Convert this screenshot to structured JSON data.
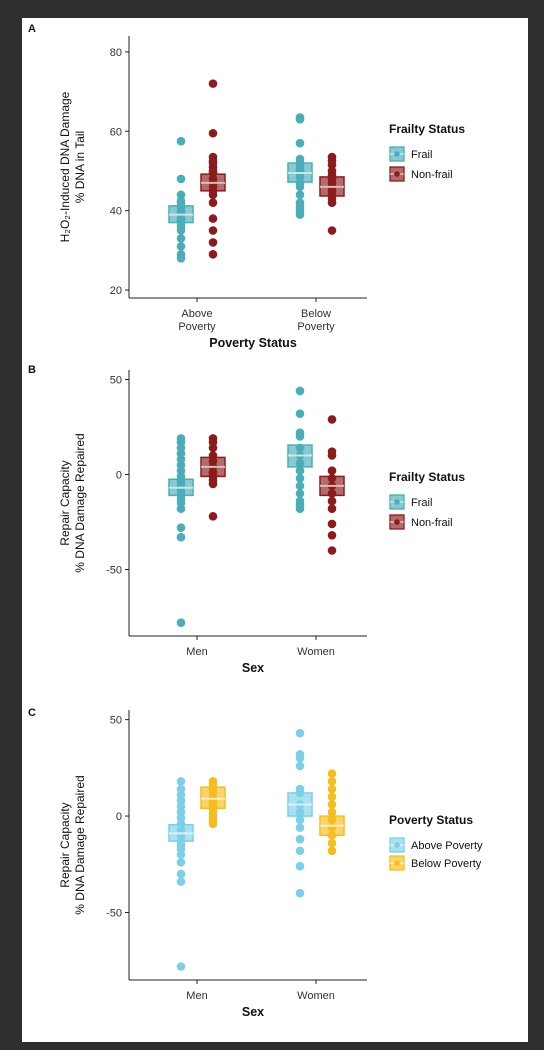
{
  "chart_data": [
    {
      "panel": "A",
      "type": "scatter",
      "xlabel": "Poverty Status",
      "ylabel_lines": [
        "H₂O₂-Induced DNA Damage",
        "% DNA in Tail"
      ],
      "categories": [
        "Above Poverty",
        "Below Poverty"
      ],
      "category_lines": [
        [
          "Above",
          "Poverty"
        ],
        [
          "Below",
          "Poverty"
        ]
      ],
      "ylim": [
        18,
        84
      ],
      "yticks": [
        20,
        40,
        60,
        80
      ],
      "legend_title": "Frailty Status",
      "legend_position": "right",
      "grid": false,
      "series": [
        {
          "name": "Frail",
          "color": "#4aadb8",
          "mean": [
            39,
            49.5
          ],
          "ci": [
            [
              37,
              41.2
            ],
            [
              47.2,
              52
            ]
          ],
          "points": [
            [
              57.5,
              48,
              44,
              42.5,
              42,
              41,
              40,
              39.5,
              39,
              38,
              37.5,
              37,
              36,
              35,
              33,
              31,
              29,
              28
            ],
            [
              63.5,
              63,
              57,
              53,
              52,
              51,
              50,
              49.5,
              48.5,
              47,
              46,
              44,
              42,
              41,
              40,
              39
            ]
          ]
        },
        {
          "name": "Non-frail",
          "color": "#8b1c1c",
          "mean": [
            47,
            46
          ],
          "ci": [
            [
              45,
              49.2
            ],
            [
              43.7,
              48.5
            ]
          ],
          "points": [
            [
              72,
              59.5,
              53.5,
              52.5,
              52,
              51,
              50,
              49.5,
              48,
              47,
              46,
              45,
              44,
              42,
              38,
              35,
              32,
              29
            ],
            [
              53.5,
              52.5,
              51.5,
              50,
              49,
              48,
              47,
              46,
              45,
              44,
              43,
              42,
              35
            ]
          ]
        }
      ]
    },
    {
      "panel": "B",
      "type": "scatter",
      "xlabel": "Sex",
      "ylabel_lines": [
        "Repair Capacity",
        "% DNA Damage Repaired"
      ],
      "categories": [
        "Men",
        "Women"
      ],
      "category_lines": [
        [
          "Men"
        ],
        [
          "Women"
        ]
      ],
      "ylim": [
        -85,
        55
      ],
      "yticks": [
        -50,
        0,
        50
      ],
      "legend_title": "Frailty Status",
      "legend_position": "right",
      "grid": false,
      "series": [
        {
          "name": "Frail",
          "color": "#4aadb8",
          "mean": [
            -7,
            10
          ],
          "ci": [
            [
              -11,
              -2.5
            ],
            [
              4,
              15.5
            ]
          ],
          "points": [
            [
              19,
              17,
              14,
              11,
              8,
              5,
              2,
              -1,
              -3,
              -5,
              -7,
              -9,
              -11,
              -13,
              -15,
              -18,
              -28,
              -33,
              -78
            ],
            [
              44,
              32,
              22,
              20,
              14,
              10,
              6,
              2,
              -2,
              -6,
              -10,
              -14,
              -16,
              -18
            ]
          ]
        },
        {
          "name": "Non-frail",
          "color": "#8b1c1c",
          "mean": [
            4,
            -6
          ],
          "ci": [
            [
              -1,
              9
            ],
            [
              -11,
              -1
            ]
          ],
          "points": [
            [
              19,
              17,
              14,
              10,
              7,
              4,
              1,
              -1,
              -3,
              -5,
              -22
            ],
            [
              29,
              12,
              10,
              2,
              -2,
              -6,
              -10,
              -14,
              -18,
              -26,
              -32,
              -40
            ]
          ]
        }
      ]
    },
    {
      "panel": "C",
      "type": "scatter",
      "xlabel": "Sex",
      "ylabel_lines": [
        "Repair Capacity",
        "% DNA Damage Repaired"
      ],
      "categories": [
        "Men",
        "Women"
      ],
      "category_lines": [
        [
          "Men"
        ],
        [
          "Women"
        ]
      ],
      "ylim": [
        -85,
        55
      ],
      "yticks": [
        -50,
        0,
        50
      ],
      "legend_title": "Poverty Status",
      "legend_position": "right",
      "grid": false,
      "series": [
        {
          "name": "Above Poverty",
          "color": "#7dcfe8",
          "mean": [
            -9,
            6
          ],
          "ci": [
            [
              -13,
              -4.5
            ],
            [
              0,
              12
            ]
          ],
          "points": [
            [
              18,
              14,
              11,
              8,
              5,
              2,
              -1,
              -4,
              -7,
              -10,
              -13,
              -15,
              -17,
              -20,
              -24,
              -30,
              -34,
              -78
            ],
            [
              43,
              32,
              30,
              26,
              14,
              12,
              6,
              2,
              -2,
              -6,
              -12,
              -18,
              -26,
              -40
            ]
          ]
        },
        {
          "name": "Below Poverty",
          "color": "#f5bd1f",
          "mean": [
            9,
            -5
          ],
          "ci": [
            [
              4,
              15
            ],
            [
              -10,
              0
            ]
          ],
          "points": [
            [
              18,
              16,
              14,
              12,
              10,
              8,
              6,
              4,
              2,
              0,
              -2,
              -4
            ],
            [
              22,
              18,
              14,
              10,
              6,
              2,
              -2,
              -6,
              -10,
              -14,
              -18
            ]
          ]
        }
      ]
    }
  ]
}
